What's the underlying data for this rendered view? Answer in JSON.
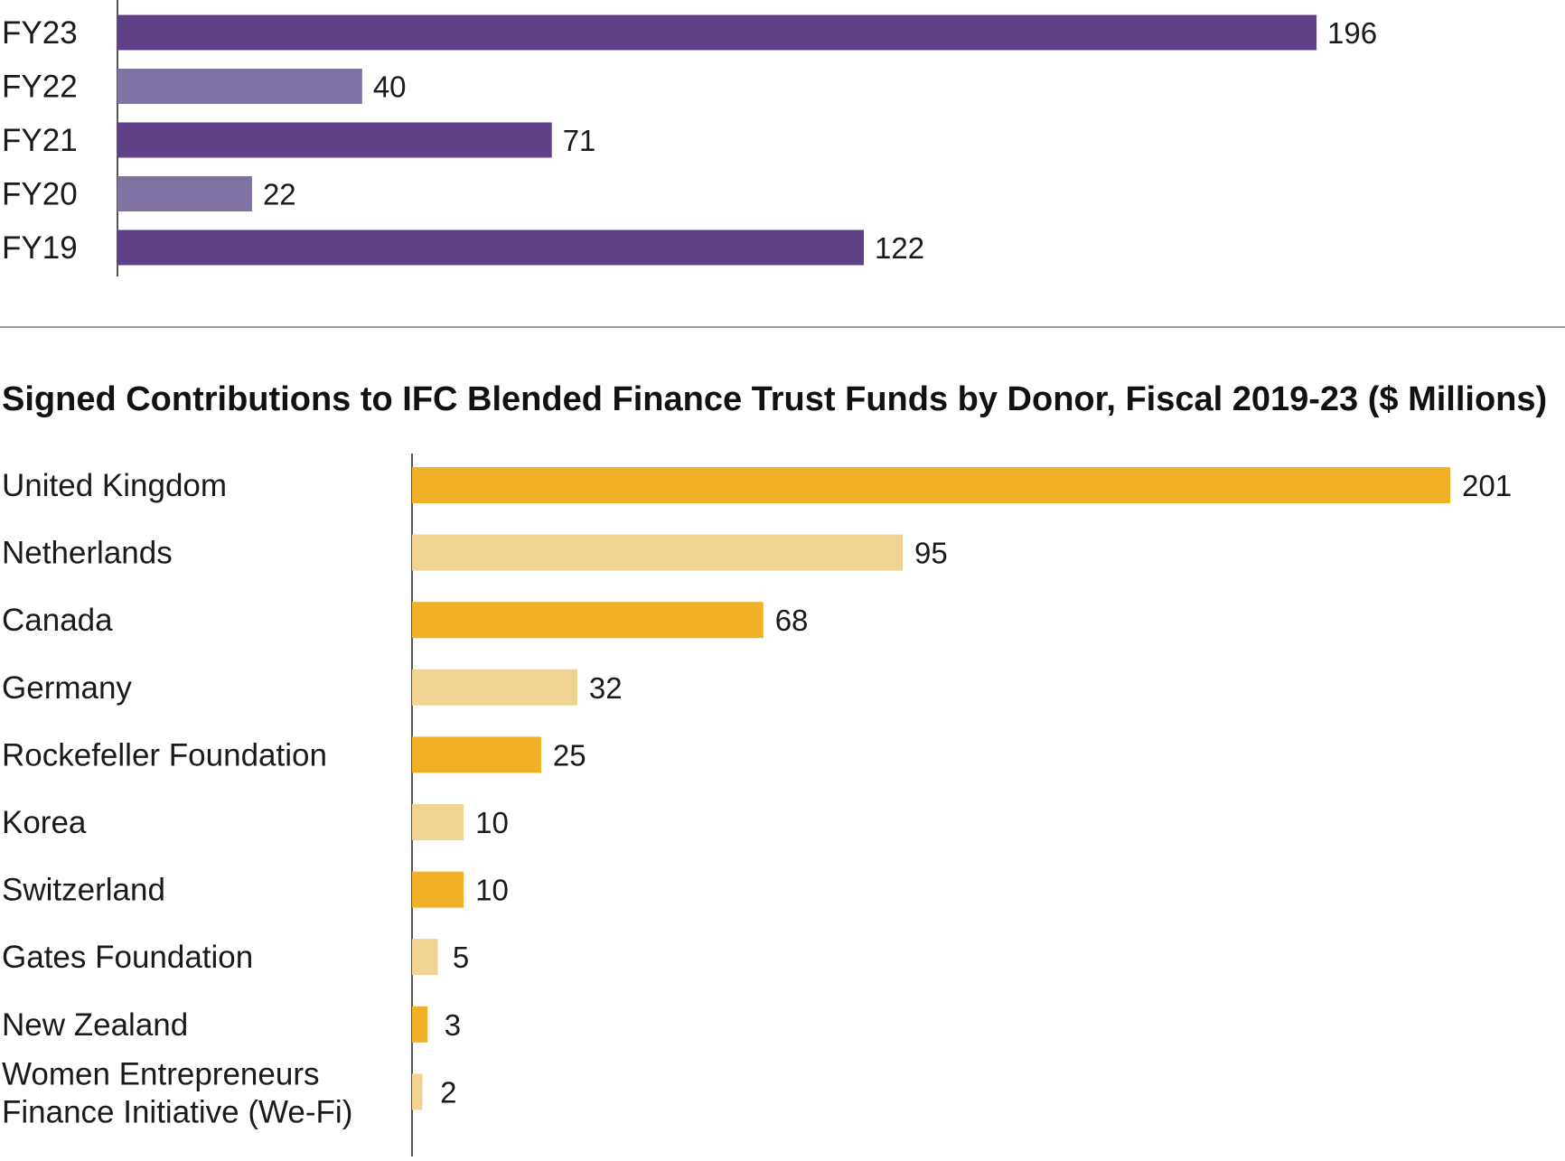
{
  "colors": {
    "purple_dark": "#5e4186",
    "purple_light": "#8073a3",
    "gold_dark": "#f2b026",
    "gold_light": "#f0d391",
    "axis": "#555555",
    "divider": "#9a9a9a",
    "text": "#1a1a1a"
  },
  "chart_data": [
    {
      "type": "bar",
      "orientation": "horizontal",
      "title": "",
      "categories": [
        "FY23",
        "FY22",
        "FY21",
        "FY20",
        "FY19"
      ],
      "values": [
        196,
        40,
        71,
        22,
        122
      ],
      "xlim": [
        0,
        240
      ],
      "grid": false,
      "data_labels": true
    },
    {
      "type": "bar",
      "orientation": "horizontal",
      "title": "Signed Contributions to IFC Blended Finance Trust Funds by Donor, Fiscal 2019-23 ($ Millions)",
      "categories": [
        "United Kingdom",
        "Netherlands",
        "Canada",
        "Germany",
        "Rockefeller Foundation",
        "Korea",
        "Switzerland",
        "Gates Foundation",
        "New Zealand",
        "Women Entrepreneurs Finance Initiative (We-Fi)"
      ],
      "category_lines": [
        [
          "United Kingdom"
        ],
        [
          "Netherlands"
        ],
        [
          "Canada"
        ],
        [
          "Germany"
        ],
        [
          "Rockefeller Foundation"
        ],
        [
          "Korea"
        ],
        [
          "Switzerland"
        ],
        [
          "Gates Foundation"
        ],
        [
          "New Zealand"
        ],
        [
          "Women Entrepreneurs",
          "Finance Initiative (We-Fi)"
        ]
      ],
      "values": [
        201,
        95,
        68,
        32,
        25,
        10,
        10,
        5,
        3,
        2
      ],
      "xlim": [
        0,
        220
      ],
      "grid": false,
      "data_labels": true
    }
  ]
}
